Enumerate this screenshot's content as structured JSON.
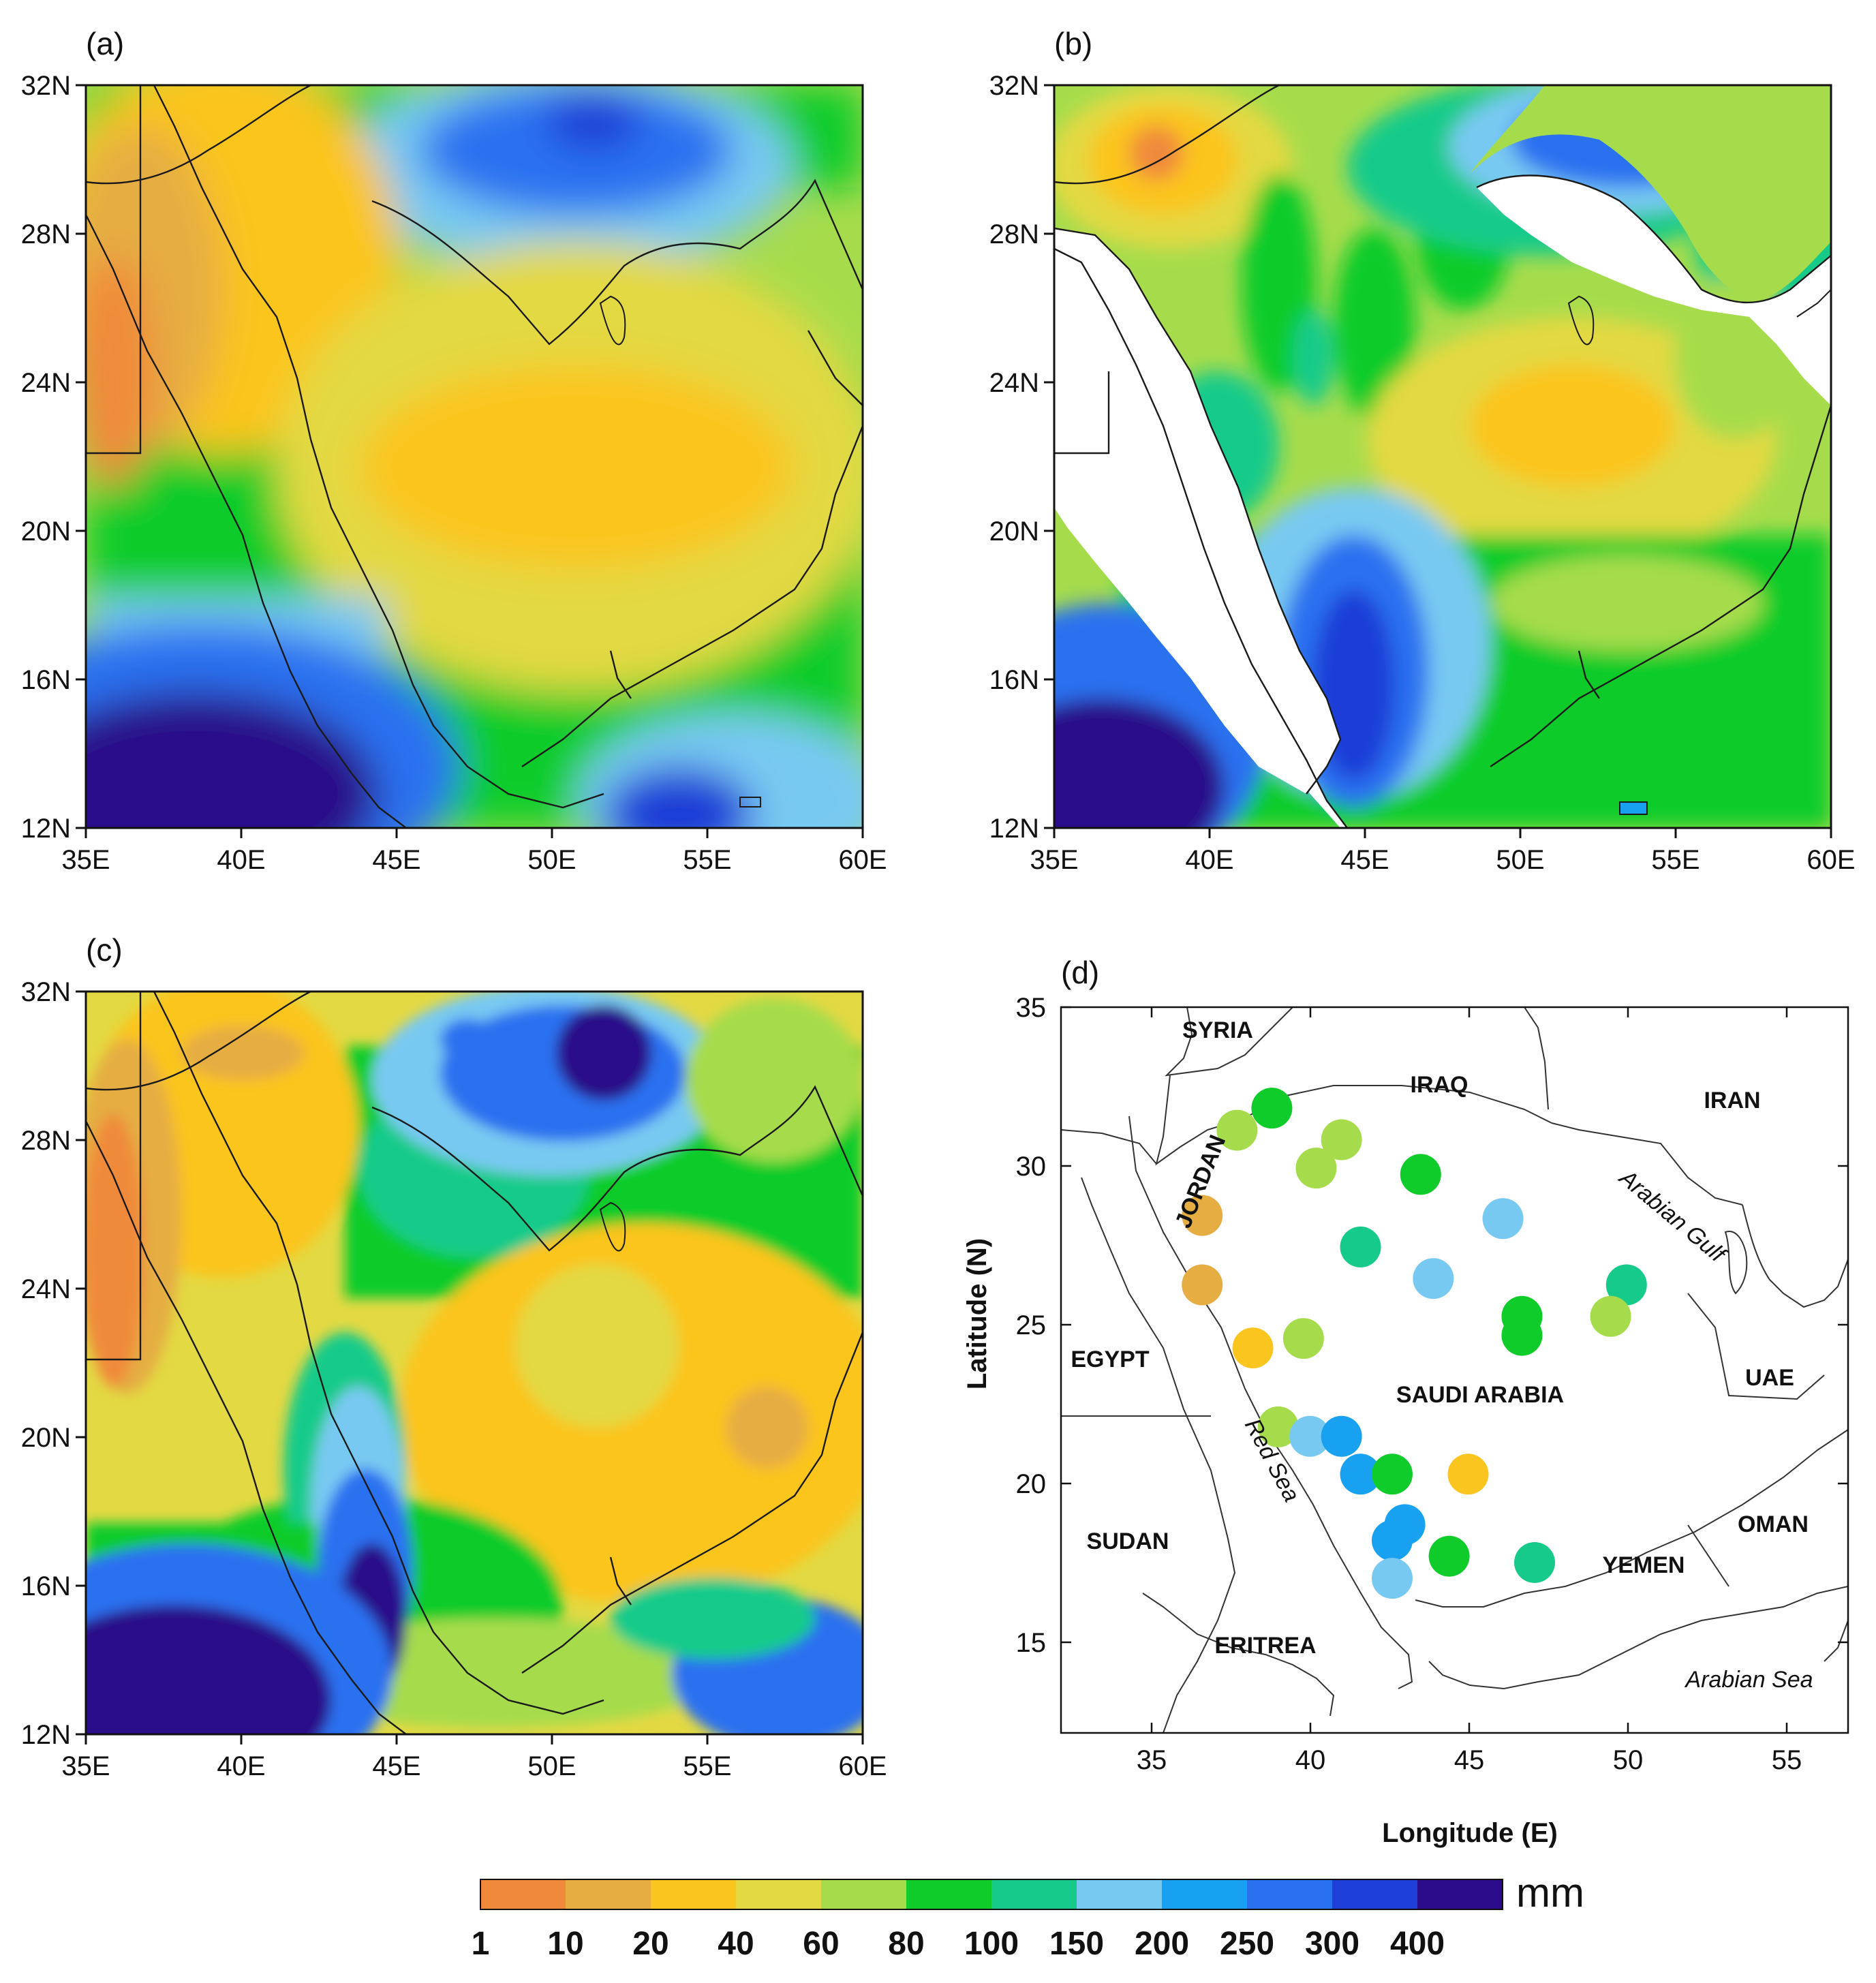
{
  "panels": [
    {
      "label": "(a)",
      "lon_ticks": [
        "35E",
        "40E",
        "45E",
        "50E",
        "55E",
        "60E"
      ],
      "lat_ticks": [
        "32N",
        "28N",
        "24N",
        "20N",
        "16N",
        "12N"
      ]
    },
    {
      "label": "(b)",
      "lon_ticks": [
        "35E",
        "40E",
        "45E",
        "50E",
        "55E",
        "60E"
      ],
      "lat_ticks": [
        "32N",
        "28N",
        "24N",
        "20N",
        "16N",
        "12N"
      ]
    },
    {
      "label": "(c)",
      "lon_ticks": [
        "35E",
        "40E",
        "45E",
        "50E",
        "55E",
        "60E"
      ],
      "lat_ticks": [
        "32N",
        "28N",
        "24N",
        "20N",
        "16N",
        "12N"
      ]
    }
  ],
  "station_panel": {
    "label": "(d)",
    "xlabel": "Longitude (E)",
    "ylabel": "Latitude (N)",
    "x_ticks": [
      "35",
      "40",
      "45",
      "50",
      "55"
    ],
    "y_ticks": [
      "35",
      "30",
      "25",
      "20",
      "15"
    ],
    "countries": [
      "SYRIA",
      "IRAQ",
      "IRAN",
      "JORDAN",
      "EGYPT",
      "SAUDI ARABIA",
      "UAE",
      "SUDAN",
      "OMAN",
      "YEMEN",
      "ERITREA"
    ],
    "water_labels": [
      "Arabian Gulf",
      "Red Sea",
      "Arabian Sea"
    ],
    "stations": [
      {
        "lon": 37.7,
        "lat": 31.1,
        "value": 60
      },
      {
        "lon": 38.8,
        "lat": 31.8,
        "value": 80
      },
      {
        "lon": 41.0,
        "lat": 30.8,
        "value": 60
      },
      {
        "lon": 40.2,
        "lat": 29.9,
        "value": 60
      },
      {
        "lon": 43.5,
        "lat": 29.7,
        "value": 80
      },
      {
        "lon": 36.6,
        "lat": 28.4,
        "value": 10
      },
      {
        "lon": 46.1,
        "lat": 28.3,
        "value": 150
      },
      {
        "lon": 41.6,
        "lat": 27.4,
        "value": 100
      },
      {
        "lon": 36.6,
        "lat": 26.2,
        "value": 10
      },
      {
        "lon": 43.9,
        "lat": 26.4,
        "value": 150
      },
      {
        "lon": 50.0,
        "lat": 26.2,
        "value": 100
      },
      {
        "lon": 46.7,
        "lat": 25.2,
        "value": 80
      },
      {
        "lon": 46.7,
        "lat": 24.6,
        "value": 80
      },
      {
        "lon": 49.5,
        "lat": 25.2,
        "value": 60
      },
      {
        "lon": 38.2,
        "lat": 24.2,
        "value": 20
      },
      {
        "lon": 39.8,
        "lat": 24.5,
        "value": 60
      },
      {
        "lon": 39.0,
        "lat": 21.7,
        "value": 60
      },
      {
        "lon": 40.0,
        "lat": 21.4,
        "value": 150
      },
      {
        "lon": 41.0,
        "lat": 21.4,
        "value": 200
      },
      {
        "lon": 41.6,
        "lat": 20.2,
        "value": 200
      },
      {
        "lon": 42.6,
        "lat": 20.2,
        "value": 80
      },
      {
        "lon": 45.0,
        "lat": 20.2,
        "value": 20
      },
      {
        "lon": 43.0,
        "lat": 18.6,
        "value": 200
      },
      {
        "lon": 42.6,
        "lat": 18.1,
        "value": 200
      },
      {
        "lon": 44.4,
        "lat": 17.6,
        "value": 80
      },
      {
        "lon": 47.1,
        "lat": 17.4,
        "value": 100
      },
      {
        "lon": 42.6,
        "lat": 16.9,
        "value": 150
      }
    ]
  },
  "colorbar": {
    "unit": "mm",
    "labels": [
      "1",
      "10",
      "20",
      "40",
      "60",
      "80",
      "100",
      "150",
      "200",
      "250",
      "300",
      "400"
    ],
    "colors": [
      "#f08a3a",
      "#e5ad42",
      "#fbc51f",
      "#e3d943",
      "#a6dc4c",
      "#0fcc2a",
      "#16cb8a",
      "#78c9f2",
      "#17a1f0",
      "#2a71f0",
      "#1d3ed7",
      "#2a0c8a"
    ]
  }
}
